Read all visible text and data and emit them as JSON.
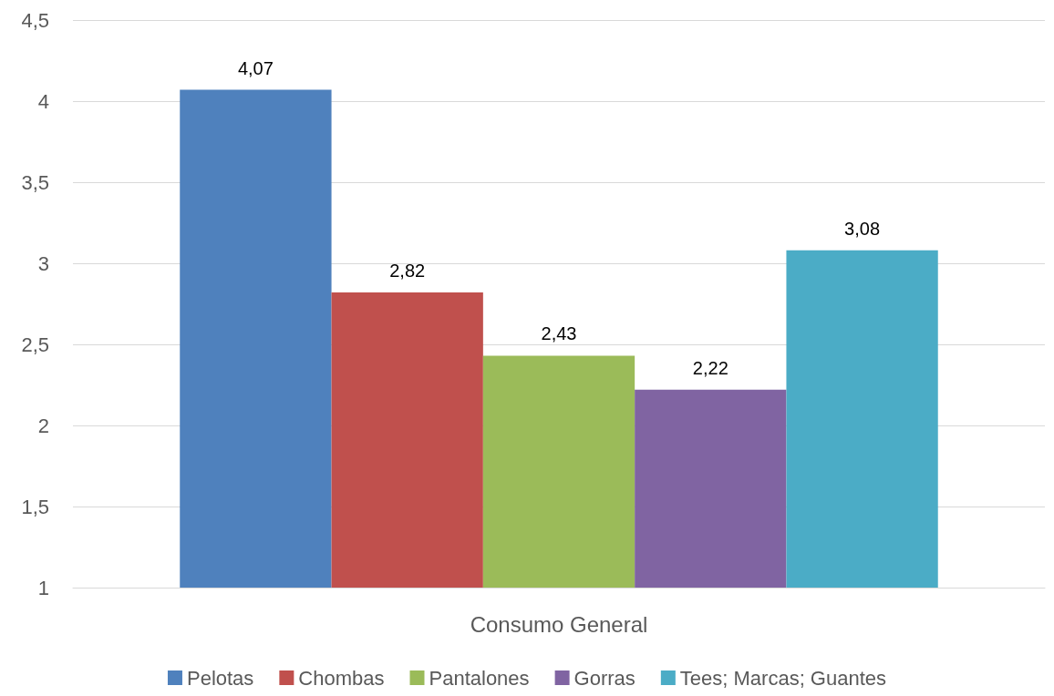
{
  "chart_data": {
    "type": "bar",
    "categories": [
      "Consumo General"
    ],
    "series": [
      {
        "name": "Pelotas",
        "color": "#4f81bd",
        "values": [
          4.07
        ],
        "value_labels": [
          "4,07"
        ]
      },
      {
        "name": "Chombas",
        "color": "#c0504d",
        "values": [
          2.82
        ],
        "value_labels": [
          "2,82"
        ]
      },
      {
        "name": "Pantalones",
        "color": "#9bbb59",
        "values": [
          2.43
        ],
        "value_labels": [
          "2,43"
        ]
      },
      {
        "name": "Gorras",
        "color": "#8064a2",
        "values": [
          2.22
        ],
        "value_labels": [
          "2,22"
        ]
      },
      {
        "name": "Tees; Marcas; Guantes",
        "color": "#4bacc6",
        "values": [
          3.08
        ],
        "value_labels": [
          "3,08"
        ]
      }
    ],
    "ylim": [
      1,
      4.5
    ],
    "yticks": [
      1,
      {
        "value": 1.5,
        "label": "1,5"
      },
      2,
      {
        "value": 2.5,
        "label": "2,5"
      },
      3,
      {
        "value": 3.5,
        "label": "3,5"
      },
      4,
      {
        "value": 4.5,
        "label": "4,5"
      }
    ],
    "grid": "y",
    "legend": "bottom"
  }
}
